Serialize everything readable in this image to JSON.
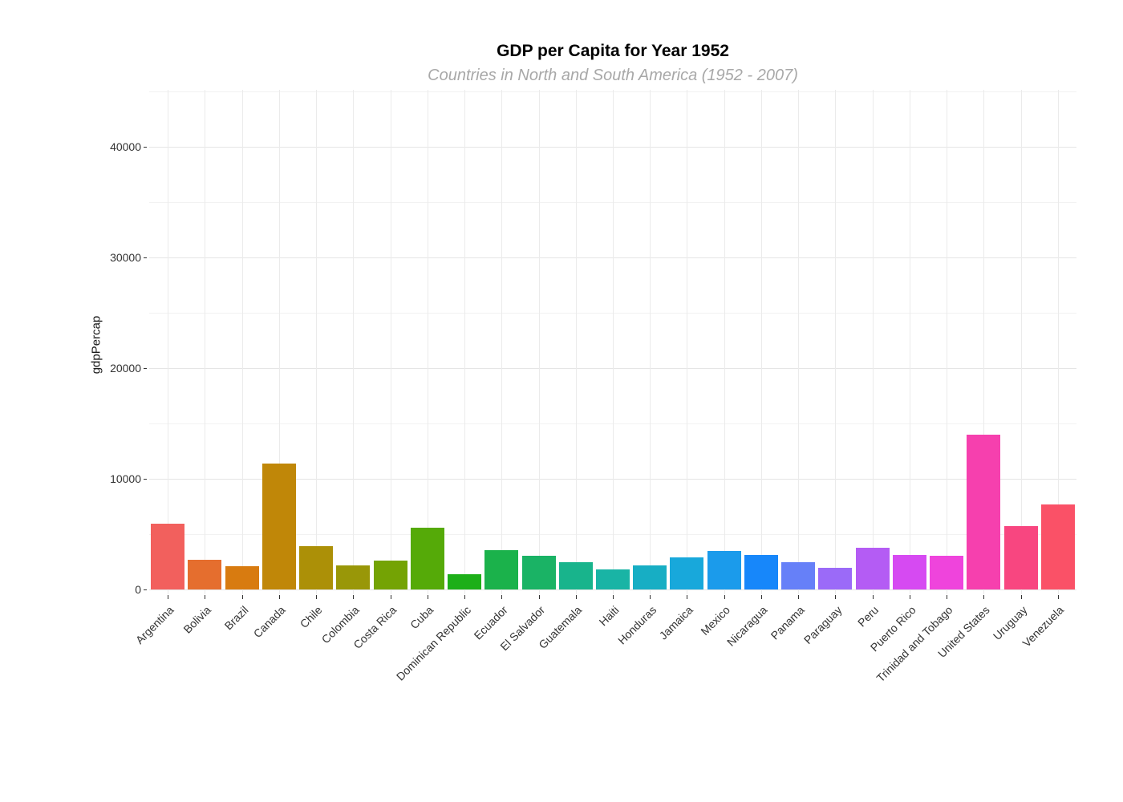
{
  "chart_data": {
    "type": "bar",
    "title": "GDP per Capita for Year 1952",
    "subtitle": "Countries in North and South America (1952 - 2007)",
    "xlabel": "",
    "ylabel": "gdpPercap",
    "ylim": [
      0,
      45000
    ],
    "yticks": [
      0,
      10000,
      20000,
      30000,
      40000
    ],
    "yticks_minor": [
      5000,
      15000,
      25000,
      35000,
      45000
    ],
    "grid": "on",
    "legend_position": "none",
    "categories": [
      "Argentina",
      "Bolivia",
      "Brazil",
      "Canada",
      "Chile",
      "Colombia",
      "Costa Rica",
      "Cuba",
      "Dominican Republic",
      "Ecuador",
      "El Salvador",
      "Guatemala",
      "Haiti",
      "Honduras",
      "Jamaica",
      "Mexico",
      "Nicaragua",
      "Panama",
      "Paraguay",
      "Peru",
      "Puerto Rico",
      "Trinidad and Tobago",
      "United States",
      "Uruguay",
      "Venezuela"
    ],
    "values": [
      5911.3,
      2677.3,
      2108.9,
      11367.2,
      3940.0,
      2144.1,
      2627.0,
      5586.5,
      1397.7,
      3522.1,
      3048.3,
      2428.2,
      1840.4,
      2194.9,
      2898.5,
      3478.1,
      3112.4,
      2480.4,
      1952.3,
      3758.5,
      3082.0,
      3023.3,
      13990.5,
      5716.8,
      7689.8
    ],
    "bar_colors": [
      "#F2605D",
      "#E56E2E",
      "#D87B10",
      "#C08708",
      "#AC9007",
      "#999708",
      "#74A304",
      "#55AA08",
      "#1DAF18",
      "#1BB24B",
      "#1AB365",
      "#18B48C",
      "#19B4A5",
      "#17AEC4",
      "#18A8DB",
      "#1B9BEB",
      "#1787FA",
      "#6680F8",
      "#9B6AF8",
      "#B45CF4",
      "#D64AF2",
      "#EF44DC",
      "#F640AE",
      "#F84680",
      "#FA5167"
    ],
    "colors": {
      "background": "#ffffff",
      "grid_major": "#e5e5e5",
      "grid_minor": "#f2f2f2",
      "grid_vertical": "#ebebeb",
      "tick": "#333333",
      "title_text": "#000000",
      "subtitle_text": "#a8a8a8",
      "axis_text": "#333333"
    }
  }
}
